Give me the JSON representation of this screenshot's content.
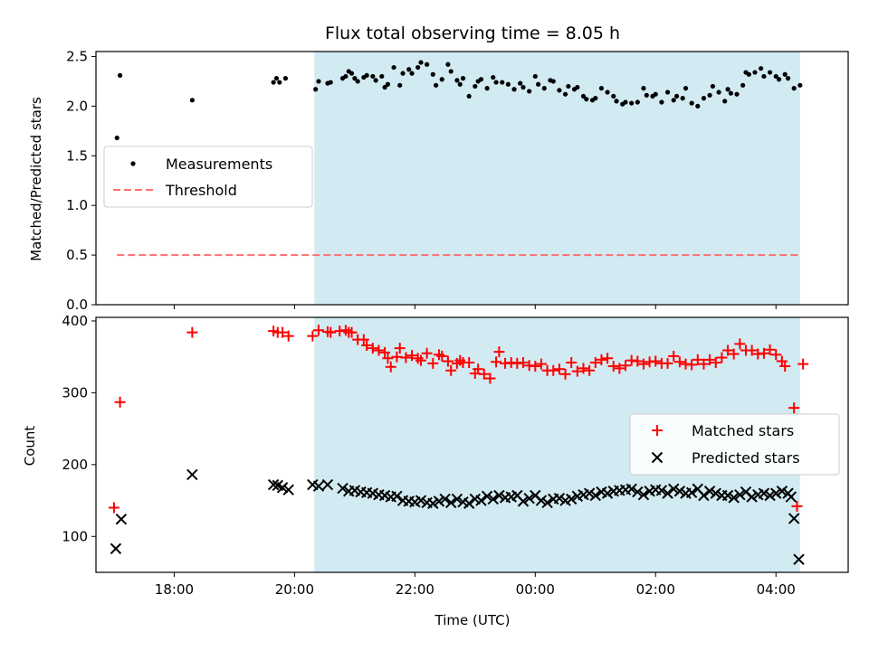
{
  "title": "Flux total observing time = 8.05 h",
  "colors": {
    "shade": "#add8e6",
    "measurements": "#000000",
    "threshold": "#ff6f6f",
    "matched": "#ff0000",
    "predicted": "#000000"
  },
  "x_axis": {
    "label": "Time (UTC)",
    "unit": "hours since 00:00 on first day, continuing past midnight",
    "range": [
      16.7,
      29.2
    ],
    "ticks": [
      {
        "value": 18,
        "label": "18:00"
      },
      {
        "value": 20,
        "label": "20:00"
      },
      {
        "value": 22,
        "label": "22:00"
      },
      {
        "value": 24,
        "label": "00:00"
      },
      {
        "value": 26,
        "label": "02:00"
      },
      {
        "value": 28,
        "label": "04:00"
      }
    ]
  },
  "chart_data": [
    {
      "type": "scatter",
      "ylabel": "Matched/Predicted stars",
      "ylim": [
        0,
        2.55
      ],
      "yticks": [
        "0.0",
        "0.5",
        "1.0",
        "1.5",
        "2.0",
        "2.5"
      ],
      "shaded_region": [
        20.33,
        28.4
      ],
      "legend": {
        "position": "center-left",
        "entries": [
          "Measurements",
          "Threshold"
        ]
      },
      "threshold": {
        "name": "Threshold",
        "y": 0.5,
        "x_range": [
          17.05,
          28.4
        ]
      },
      "series": [
        {
          "name": "Measurements",
          "x": [
            17.05,
            17.1,
            18.3,
            19.65,
            19.7,
            19.75,
            19.85,
            20.35,
            20.4,
            20.55,
            20.6,
            20.8,
            20.85,
            20.9,
            20.95,
            21.0,
            21.05,
            21.15,
            21.2,
            21.3,
            21.35,
            21.45,
            21.5,
            21.55,
            21.65,
            21.75,
            21.8,
            21.9,
            21.95,
            22.05,
            22.1,
            22.2,
            22.3,
            22.35,
            22.45,
            22.55,
            22.6,
            22.7,
            22.75,
            22.8,
            22.9,
            23.0,
            23.05,
            23.1,
            23.2,
            23.3,
            23.35,
            23.45,
            23.55,
            23.65,
            23.75,
            23.8,
            23.9,
            24.0,
            24.05,
            24.15,
            24.25,
            24.3,
            24.4,
            24.5,
            24.55,
            24.65,
            24.7,
            24.8,
            24.85,
            24.95,
            25.0,
            25.1,
            25.2,
            25.3,
            25.35,
            25.45,
            25.5,
            25.6,
            25.7,
            25.8,
            25.85,
            25.95,
            26.0,
            26.1,
            26.2,
            26.3,
            26.35,
            26.45,
            26.5,
            26.6,
            26.7,
            26.8,
            26.9,
            26.95,
            27.05,
            27.15,
            27.2,
            27.25,
            27.35,
            27.45,
            27.5,
            27.55,
            27.65,
            27.75,
            27.8,
            27.9,
            28.0,
            28.05,
            28.15,
            28.2,
            28.3,
            28.4
          ],
          "y": [
            1.68,
            2.31,
            2.06,
            2.24,
            2.28,
            2.24,
            2.28,
            2.17,
            2.25,
            2.23,
            2.24,
            2.28,
            2.3,
            2.35,
            2.33,
            2.28,
            2.25,
            2.29,
            2.31,
            2.3,
            2.26,
            2.3,
            2.19,
            2.22,
            2.39,
            2.21,
            2.33,
            2.37,
            2.33,
            2.39,
            2.44,
            2.42,
            2.32,
            2.21,
            2.27,
            2.42,
            2.35,
            2.26,
            2.22,
            2.28,
            2.1,
            2.2,
            2.25,
            2.27,
            2.18,
            2.29,
            2.24,
            2.24,
            2.22,
            2.17,
            2.23,
            2.19,
            2.15,
            2.3,
            2.22,
            2.18,
            2.26,
            2.25,
            2.16,
            2.12,
            2.2,
            2.17,
            2.19,
            2.1,
            2.07,
            2.06,
            2.08,
            2.18,
            2.14,
            2.1,
            2.05,
            2.02,
            2.04,
            2.03,
            2.04,
            2.18,
            2.11,
            2.1,
            2.12,
            2.04,
            2.14,
            2.06,
            2.1,
            2.08,
            2.18,
            2.03,
            2.0,
            2.08,
            2.11,
            2.2,
            2.14,
            2.05,
            2.17,
            2.13,
            2.12,
            2.21,
            2.34,
            2.32,
            2.34,
            2.38,
            2.3,
            2.34,
            2.3,
            2.27,
            2.32,
            2.28,
            2.18,
            2.21
          ]
        }
      ]
    },
    {
      "type": "scatter",
      "ylabel": "Count",
      "ylim": [
        50,
        405
      ],
      "yticks": [
        "100",
        "200",
        "300",
        "400"
      ],
      "shaded_region": [
        20.33,
        28.4
      ],
      "legend": {
        "position": "center-right",
        "entries": [
          "Matched stars",
          "Predicted stars"
        ]
      },
      "series": [
        {
          "name": "Matched stars",
          "marker": "plus",
          "x": [
            17.0,
            17.1,
            18.3,
            19.65,
            19.72,
            19.8,
            19.9,
            20.3,
            20.4,
            20.55,
            20.6,
            20.75,
            20.85,
            20.9,
            20.95,
            21.05,
            21.15,
            21.2,
            21.3,
            21.4,
            21.5,
            21.55,
            21.6,
            21.7,
            21.75,
            21.85,
            21.95,
            22.05,
            22.1,
            22.2,
            22.3,
            22.4,
            22.45,
            22.55,
            22.6,
            22.7,
            22.75,
            22.8,
            22.9,
            23.0,
            23.05,
            23.15,
            23.25,
            23.35,
            23.4,
            23.5,
            23.6,
            23.7,
            23.8,
            23.9,
            24.0,
            24.1,
            24.2,
            24.3,
            24.4,
            24.5,
            24.6,
            24.7,
            24.8,
            24.9,
            25.0,
            25.1,
            25.2,
            25.3,
            25.4,
            25.5,
            25.6,
            25.7,
            25.8,
            25.9,
            26.0,
            26.1,
            26.2,
            26.3,
            26.4,
            26.5,
            26.6,
            26.7,
            26.8,
            26.9,
            27.0,
            27.1,
            27.2,
            27.3,
            27.4,
            27.5,
            27.6,
            27.7,
            27.8,
            27.9,
            28.0,
            28.1,
            28.15,
            28.3,
            28.35,
            28.45
          ],
          "y": [
            140,
            287,
            384,
            386,
            384,
            384,
            379,
            379,
            387,
            385,
            384,
            386,
            387,
            384,
            384,
            374,
            374,
            366,
            362,
            359,
            356,
            348,
            336,
            350,
            362,
            349,
            352,
            348,
            345,
            355,
            341,
            353,
            351,
            344,
            331,
            341,
            345,
            342,
            342,
            327,
            333,
            326,
            320,
            343,
            357,
            341,
            342,
            341,
            342,
            338,
            337,
            340,
            331,
            331,
            333,
            326,
            342,
            330,
            334,
            331,
            342,
            346,
            348,
            337,
            334,
            338,
            345,
            344,
            340,
            343,
            344,
            341,
            341,
            351,
            343,
            340,
            339,
            346,
            340,
            346,
            342,
            349,
            359,
            354,
            368,
            359,
            359,
            354,
            355,
            360,
            353,
            344,
            337,
            279,
            142,
            340
          ]
        },
        {
          "name": "Predicted stars",
          "marker": "x",
          "x": [
            17.03,
            17.12,
            18.3,
            19.65,
            19.72,
            19.8,
            19.9,
            20.3,
            20.4,
            20.55,
            20.8,
            20.9,
            21.0,
            21.1,
            21.2,
            21.3,
            21.4,
            21.5,
            21.6,
            21.7,
            21.8,
            21.9,
            22.0,
            22.1,
            22.2,
            22.3,
            22.4,
            22.5,
            22.6,
            22.7,
            22.8,
            22.9,
            23.0,
            23.1,
            23.2,
            23.3,
            23.4,
            23.5,
            23.6,
            23.7,
            23.8,
            23.9,
            24.0,
            24.1,
            24.2,
            24.3,
            24.4,
            24.5,
            24.6,
            24.7,
            24.8,
            24.9,
            25.0,
            25.1,
            25.2,
            25.3,
            25.4,
            25.5,
            25.6,
            25.7,
            25.8,
            25.9,
            26.0,
            26.1,
            26.2,
            26.3,
            26.4,
            26.5,
            26.6,
            26.7,
            26.8,
            26.9,
            27.0,
            27.1,
            27.2,
            27.3,
            27.4,
            27.5,
            27.6,
            27.7,
            27.8,
            27.9,
            28.0,
            28.1,
            28.2,
            28.25,
            28.3,
            28.38
          ],
          "y": [
            83,
            124,
            186,
            172,
            171,
            168,
            165,
            172,
            170,
            172,
            167,
            163,
            164,
            162,
            161,
            160,
            158,
            157,
            155,
            156,
            150,
            149,
            148,
            150,
            147,
            146,
            149,
            152,
            147,
            152,
            148,
            146,
            152,
            150,
            156,
            152,
            157,
            154,
            155,
            157,
            149,
            153,
            157,
            150,
            147,
            152,
            153,
            150,
            152,
            156,
            158,
            160,
            157,
            162,
            160,
            163,
            164,
            165,
            166,
            162,
            158,
            163,
            165,
            164,
            160,
            166,
            163,
            160,
            161,
            166,
            157,
            163,
            160,
            157,
            157,
            154,
            158,
            162,
            155,
            158,
            160,
            157,
            160,
            163,
            160,
            155,
            125,
            68
          ]
        }
      ]
    }
  ]
}
